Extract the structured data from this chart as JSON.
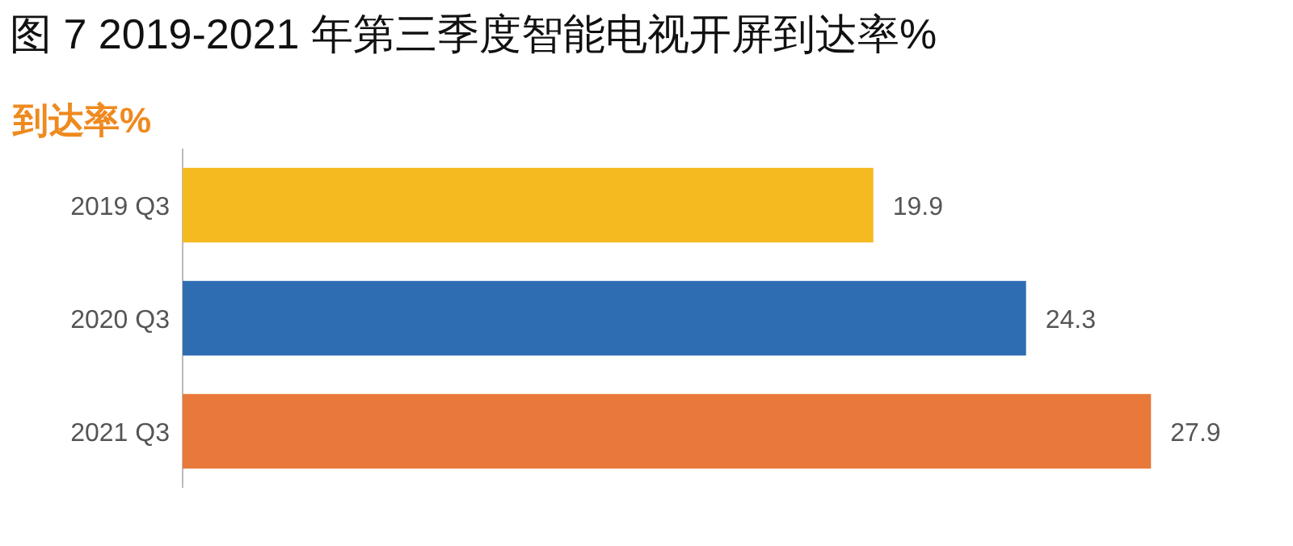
{
  "chart_data": {
    "type": "bar",
    "orientation": "horizontal",
    "title": "图 7 2019-2021 年第三季度智能电视开屏到达率%",
    "subtitle": "到达率%",
    "categories": [
      "2019 Q3",
      "2020 Q3",
      "2021 Q3"
    ],
    "values": [
      19.9,
      24.3,
      27.9
    ],
    "colors": [
      "#f5ba20",
      "#2f6db3",
      "#e8793a"
    ],
    "data_labels": true
  }
}
